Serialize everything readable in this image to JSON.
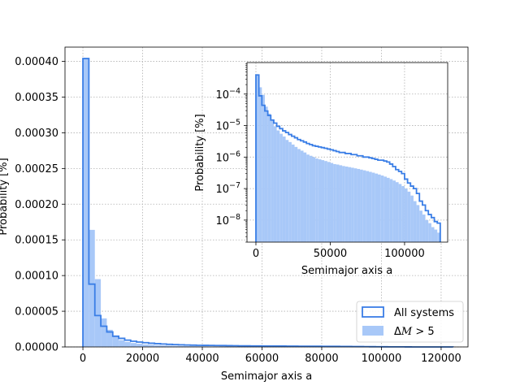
{
  "chart_data": [
    {
      "type": "histogram",
      "title": "",
      "xlabel": "Semimajor axis a",
      "ylabel": "Probability [%]",
      "xlim": [
        -6000,
        129000
      ],
      "ylim": [
        0,
        0.00042
      ],
      "grid": true,
      "grid_style": "dotted",
      "legend_position": "lower-right",
      "x_ticks": [
        0,
        20000,
        40000,
        60000,
        80000,
        100000,
        120000
      ],
      "y_ticks": [
        0,
        5e-05,
        0.0001,
        0.00015,
        0.0002,
        0.00025,
        0.0003,
        0.00035,
        0.0004
      ],
      "x_tick_labels": [
        "0",
        "20000",
        "40000",
        "60000",
        "80000",
        "100000",
        "120000"
      ],
      "y_tick_labels": [
        "0.00000",
        "0.00005",
        "0.00010",
        "0.00015",
        "0.00020",
        "0.00025",
        "0.00030",
        "0.00035",
        "0.00040"
      ],
      "bins": {
        "start": 0,
        "width": 2000,
        "count": 62
      },
      "series": [
        {
          "name": "All systems",
          "style": "step",
          "color": "#3a7ee6",
          "values": [
            0.000404,
            8.8e-05,
            4.4e-05,
            2.9e-05,
            2.1e-05,
            1.5e-05,
            1.2e-05,
            9.5e-06,
            8e-06,
            6.8e-06,
            6e-06,
            5.2e-06,
            4.6e-06,
            4.1e-06,
            3.6e-06,
            3.3e-06,
            3e-06,
            2.7e-06,
            2.5e-06,
            2.3e-06,
            2.2e-06,
            2.1e-06,
            2e-06,
            1.9e-06,
            1.8e-06,
            1.7e-06,
            1.6e-06,
            1.5e-06,
            1.4e-06,
            1.4e-06,
            1.3e-06,
            1.3e-06,
            1.2e-06,
            1.2e-06,
            1.1e-06,
            1.1e-06,
            1e-06,
            1e-06,
            9.5e-07,
            9e-07,
            8.5e-07,
            8e-07,
            8e-07,
            7.5e-07,
            7e-07,
            6e-07,
            5e-07,
            4e-07,
            3.5e-07,
            3e-07,
            2e-07,
            1.5e-07,
            1.2e-07,
            1e-07,
            7e-08,
            4e-08,
            3e-08,
            2e-08,
            1.5e-08,
            1.2e-08,
            9e-09,
            8e-09
          ]
        },
        {
          "name": "ΔM > 5",
          "style": "filled",
          "color": "#a8c8f8",
          "values": [
            0.000404,
            0.000164,
            9.5e-05,
            4e-05,
            2.4e-05,
            1.5e-05,
            9.5e-06,
            7e-06,
            5.5e-06,
            4.5e-06,
            3.5e-06,
            3e-06,
            2.5e-06,
            2.1e-06,
            1.8e-06,
            1.6e-06,
            1.4e-06,
            1.2e-06,
            1.1e-06,
            1e-06,
            9e-07,
            8.5e-07,
            8e-07,
            7.5e-07,
            7e-07,
            6.5e-07,
            6e-07,
            5.8e-07,
            5.5e-07,
            5.2e-07,
            5e-07,
            4.8e-07,
            4.6e-07,
            4.4e-07,
            4.2e-07,
            4e-07,
            3.8e-07,
            3.6e-07,
            3.4e-07,
            3.2e-07,
            3e-07,
            2.8e-07,
            2.6e-07,
            2.4e-07,
            2.2e-07,
            2e-07,
            1.8e-07,
            1.6e-07,
            1.4e-07,
            1.2e-07,
            1e-07,
            8e-08,
            6e-08,
            4e-08,
            3e-08,
            2e-08,
            1.5e-08,
            1e-08,
            8e-09,
            6e-09,
            5e-09,
            4e-09
          ]
        }
      ]
    },
    {
      "type": "histogram",
      "title": "",
      "xlabel": "Semimajor axis a",
      "ylabel": "Probability [%]",
      "yscale": "log",
      "xlim": [
        -6000,
        129000
      ],
      "ylim": [
        2e-09,
        0.001
      ],
      "grid": true,
      "grid_style": "dotted",
      "x_ticks": [
        0,
        50000,
        100000
      ],
      "x_tick_labels": [
        "0",
        "50000",
        "100000"
      ],
      "y_ticks": [
        1e-08,
        1e-07,
        1e-06,
        1e-05,
        0.0001
      ],
      "y_tick_labels": [
        {
          "base": "10",
          "exp": "−8"
        },
        {
          "base": "10",
          "exp": "−7"
        },
        {
          "base": "10",
          "exp": "−6"
        },
        {
          "base": "10",
          "exp": "−5"
        },
        {
          "base": "10",
          "exp": "−4"
        }
      ],
      "note": "inset reuses the same bins and series as the main panel, shown on a log y axis"
    }
  ],
  "legend": {
    "entries": [
      {
        "label": "All systems"
      },
      {
        "label_prefix": "Δ",
        "label_italic": "M",
        "label_suffix": " > 5"
      }
    ]
  }
}
